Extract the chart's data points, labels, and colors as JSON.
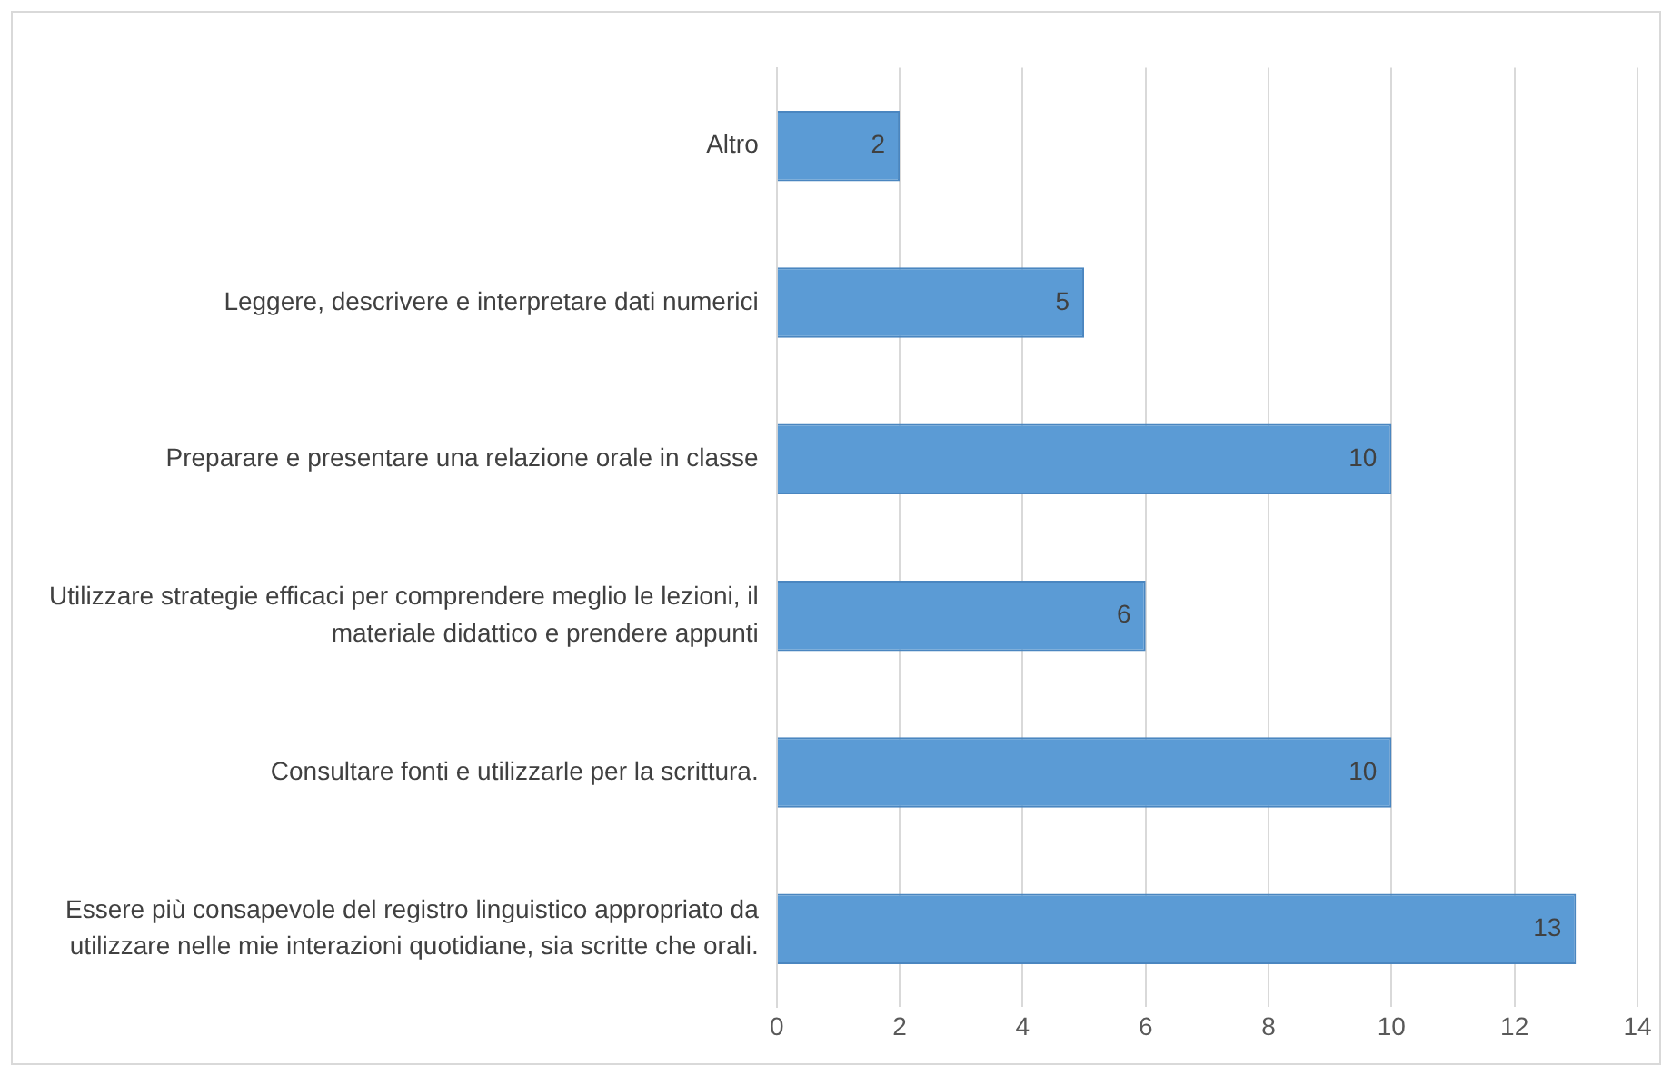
{
  "chart_data": {
    "type": "bar",
    "orientation": "horizontal",
    "categories": [
      "Altro",
      "Leggere, descrivere e interpretare dati numerici",
      "Preparare e presentare una relazione orale in classe",
      "Utilizzare strategie efficaci per comprendere meglio le lezioni, il materiale didattico e prendere appunti",
      "Consultare fonti e utilizzarle per la scrittura.",
      "Essere più consapevole del registro linguistico appropriato da utilizzare nelle mie interazioni quotidiane, sia scritte che orali."
    ],
    "values": [
      2,
      5,
      10,
      6,
      10,
      13
    ],
    "color": "#5b9bd5",
    "xlim": [
      0,
      14
    ],
    "xticks": [
      0,
      2,
      4,
      6,
      8,
      10,
      12,
      14
    ],
    "grid": "x",
    "legend": false,
    "data_labels": true
  }
}
